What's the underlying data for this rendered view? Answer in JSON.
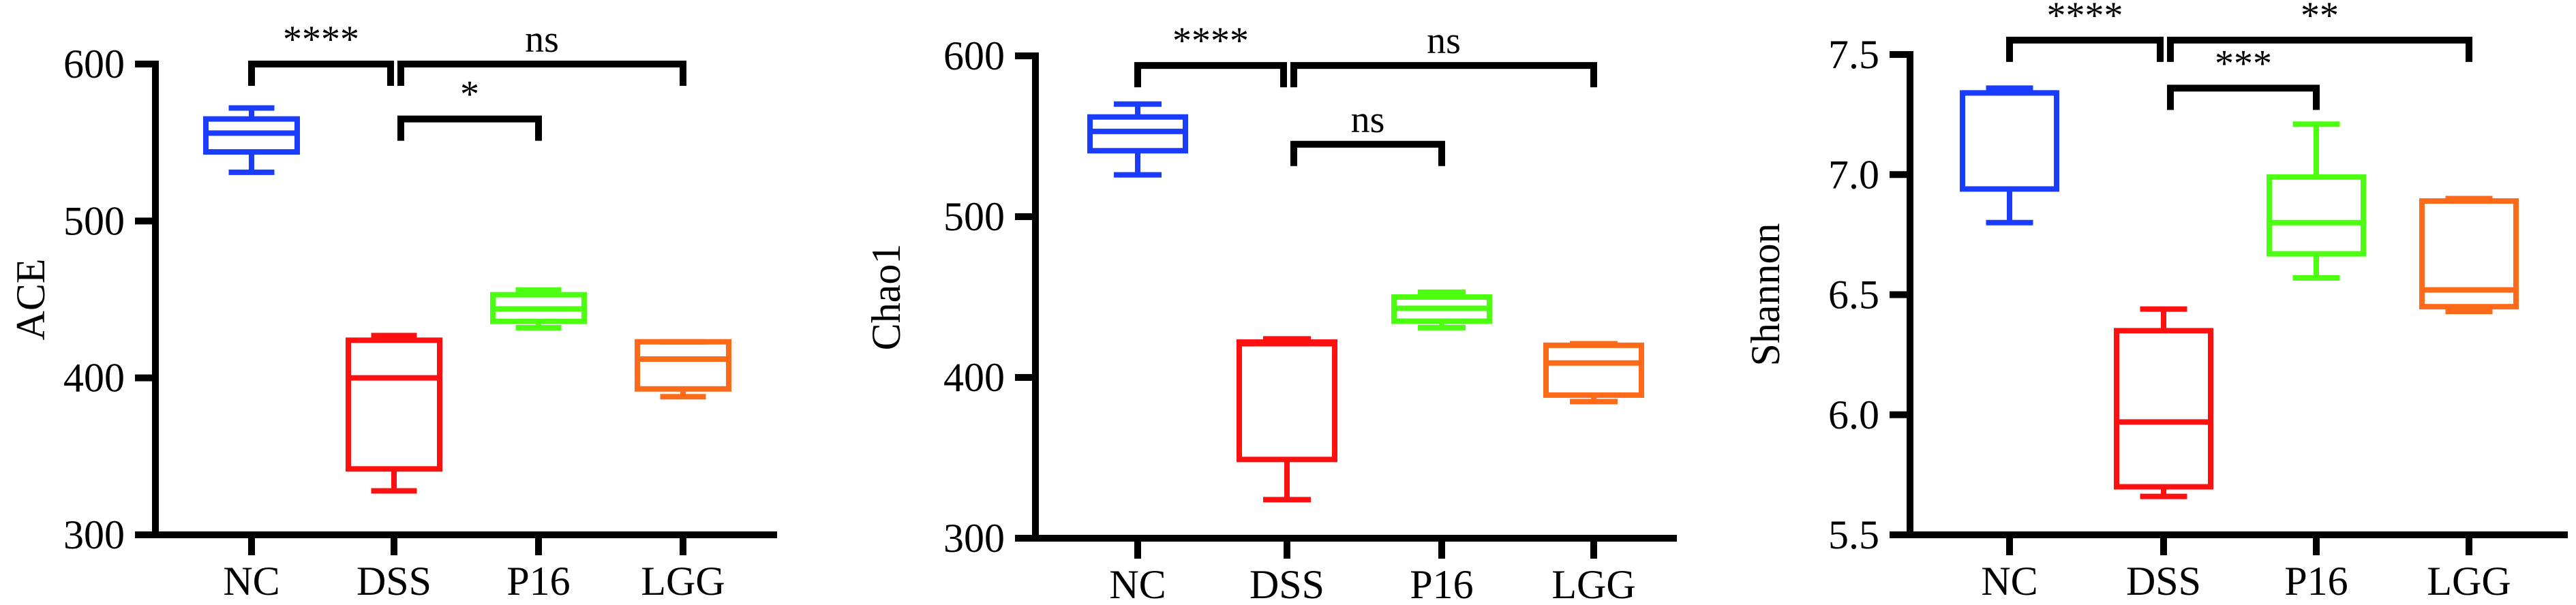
{
  "chart_data": [
    {
      "type": "box",
      "ylabel": "ACE",
      "ylim": [
        300,
        600
      ],
      "yticks": [
        "300",
        "400",
        "500",
        "600"
      ],
      "categories": [
        "NC",
        "DSS",
        "P16",
        "LGG"
      ],
      "colors": [
        "#1a3cff",
        "#ff1010",
        "#4cff10",
        "#ff6a1a"
      ],
      "boxes": [
        {
          "min": 531,
          "q1": 544,
          "median": 556,
          "q3": 565,
          "max": 572
        },
        {
          "min": 328,
          "q1": 342,
          "median": 400,
          "q3": 424,
          "max": 427
        },
        {
          "min": 432,
          "q1": 436,
          "median": 444,
          "q3": 453,
          "max": 456
        },
        {
          "min": 388,
          "q1": 393,
          "median": 412,
          "q3": 423,
          "max": 423
        }
      ],
      "comparisons": [
        {
          "from": 0,
          "to": 1,
          "level": 600,
          "label": "****"
        },
        {
          "from": 1,
          "to": 3,
          "level": 600,
          "label": "ns"
        },
        {
          "from": 1,
          "to": 2,
          "level": 565,
          "label": "*"
        }
      ]
    },
    {
      "type": "box",
      "ylabel": "Chao1",
      "ylim": [
        300,
        600
      ],
      "yticks": [
        "300",
        "400",
        "500",
        "600"
      ],
      "categories": [
        "NC",
        "DSS",
        "P16",
        "LGG"
      ],
      "colors": [
        "#1a3cff",
        "#ff1010",
        "#4cff10",
        "#ff6a1a"
      ],
      "boxes": [
        {
          "min": 526,
          "q1": 541,
          "median": 553,
          "q3": 562,
          "max": 570
        },
        {
          "min": 324,
          "q1": 349,
          "median": 421,
          "q3": 422,
          "max": 424
        },
        {
          "min": 431,
          "q1": 435,
          "median": 443,
          "q3": 450,
          "max": 453
        },
        {
          "min": 385,
          "q1": 389,
          "median": 409,
          "q3": 420,
          "max": 421
        }
      ],
      "comparisons": [
        {
          "from": 0,
          "to": 1,
          "level": 594,
          "label": "****"
        },
        {
          "from": 1,
          "to": 3,
          "level": 594,
          "label": "ns"
        },
        {
          "from": 1,
          "to": 2,
          "level": 545,
          "label": "ns"
        }
      ]
    },
    {
      "type": "box",
      "ylabel": "Shannon",
      "ylim": [
        5.5,
        7.5
      ],
      "yticks": [
        "5.5",
        "6.0",
        "6.5",
        "7.0",
        "7.5"
      ],
      "categories": [
        "NC",
        "DSS",
        "P16",
        "LGG"
      ],
      "colors": [
        "#1a3cff",
        "#ff1010",
        "#4cff10",
        "#ff6a1a"
      ],
      "boxes": [
        {
          "min": 6.8,
          "q1": 6.94,
          "median": 7.34,
          "q3": 7.34,
          "max": 7.36
        },
        {
          "min": 5.66,
          "q1": 5.7,
          "median": 5.97,
          "q3": 6.35,
          "max": 6.44
        },
        {
          "min": 6.57,
          "q1": 6.67,
          "median": 6.8,
          "q3": 6.99,
          "max": 7.21
        },
        {
          "min": 6.43,
          "q1": 6.45,
          "median": 6.52,
          "q3": 6.89,
          "max": 6.9
        }
      ],
      "comparisons": [
        {
          "from": 0,
          "to": 1,
          "level": 7.56,
          "label": "****"
        },
        {
          "from": 1,
          "to": 3,
          "level": 7.56,
          "label": "**"
        },
        {
          "from": 1,
          "to": 2,
          "level": 7.36,
          "label": "***"
        }
      ]
    }
  ]
}
